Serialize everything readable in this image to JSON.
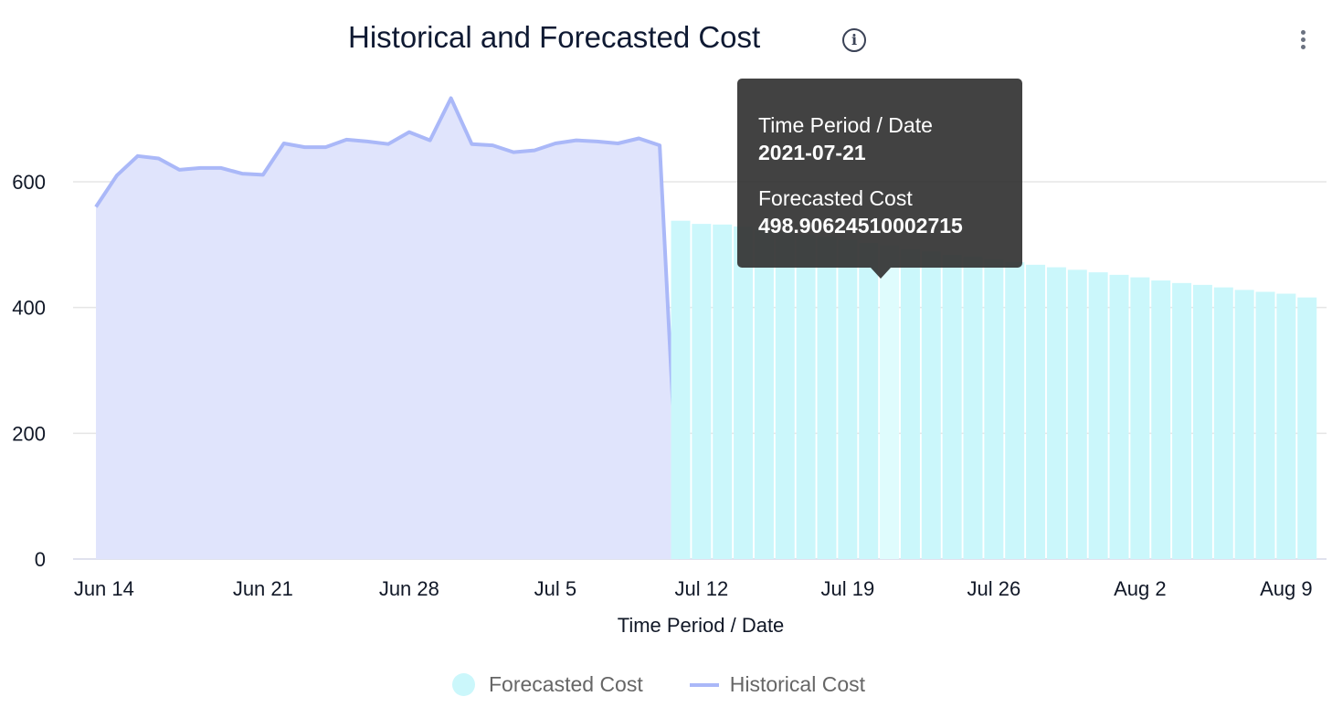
{
  "header": {
    "title": "Historical and Forecasted Cost",
    "info_icon": "info-circle-icon",
    "menu_icon": "kebab-menu-icon"
  },
  "tooltip": {
    "x_label": "Time Period / Date",
    "x_value": "2021-07-21",
    "y_label": "Forecasted Cost",
    "y_value": "498.90624510002715"
  },
  "legend": {
    "forecast": "Forecasted Cost",
    "historical": "Historical Cost"
  },
  "colors": {
    "forecast_bar": "#cbf7fb",
    "forecast_bar_active": "#dffcfd",
    "historical_line": "#aab8f8",
    "historical_area": "#e0e4fc",
    "grid": "#e5e5e5"
  },
  "chart_data": {
    "type": "bar+area",
    "title": "Historical and Forecasted Cost",
    "xlabel": "Time Period / Date",
    "ylabel": "",
    "ylim": [
      0,
      700
    ],
    "yticks": [
      0,
      200,
      400,
      600
    ],
    "xticks": [
      {
        "date": "2021-06-14",
        "label": "Jun 14"
      },
      {
        "date": "2021-06-21",
        "label": "Jun 21"
      },
      {
        "date": "2021-06-28",
        "label": "Jun 28"
      },
      {
        "date": "2021-07-05",
        "label": "Jul 5"
      },
      {
        "date": "2021-07-12",
        "label": "Jul 12"
      },
      {
        "date": "2021-07-19",
        "label": "Jul 19"
      },
      {
        "date": "2021-07-26",
        "label": "Jul 26"
      },
      {
        "date": "2021-08-02",
        "label": "Aug 2"
      },
      {
        "date": "2021-08-09",
        "label": "Aug 9"
      }
    ],
    "grid": true,
    "legend": "bottom",
    "series": [
      {
        "name": "Historical Cost",
        "type": "area-line",
        "start": "2021-06-13",
        "values": [
          560,
          610,
          641,
          637,
          619,
          622,
          622,
          613,
          611,
          661,
          655,
          655,
          667,
          664,
          660,
          679,
          666,
          733,
          660,
          658,
          647,
          650,
          661,
          666,
          664,
          661,
          669,
          658,
          0
        ]
      },
      {
        "name": "Forecasted Cost",
        "type": "bar",
        "start": "2021-07-11",
        "values": [
          538,
          533,
          532,
          529,
          525,
          521,
          516,
          512,
          508,
          503,
          498.90624510002715,
          493,
          489,
          484,
          480,
          477,
          472,
          468,
          464,
          460,
          456,
          452,
          448,
          443,
          439,
          436,
          432,
          428,
          425,
          422,
          416
        ],
        "highlighted": "2021-07-21"
      }
    ]
  }
}
